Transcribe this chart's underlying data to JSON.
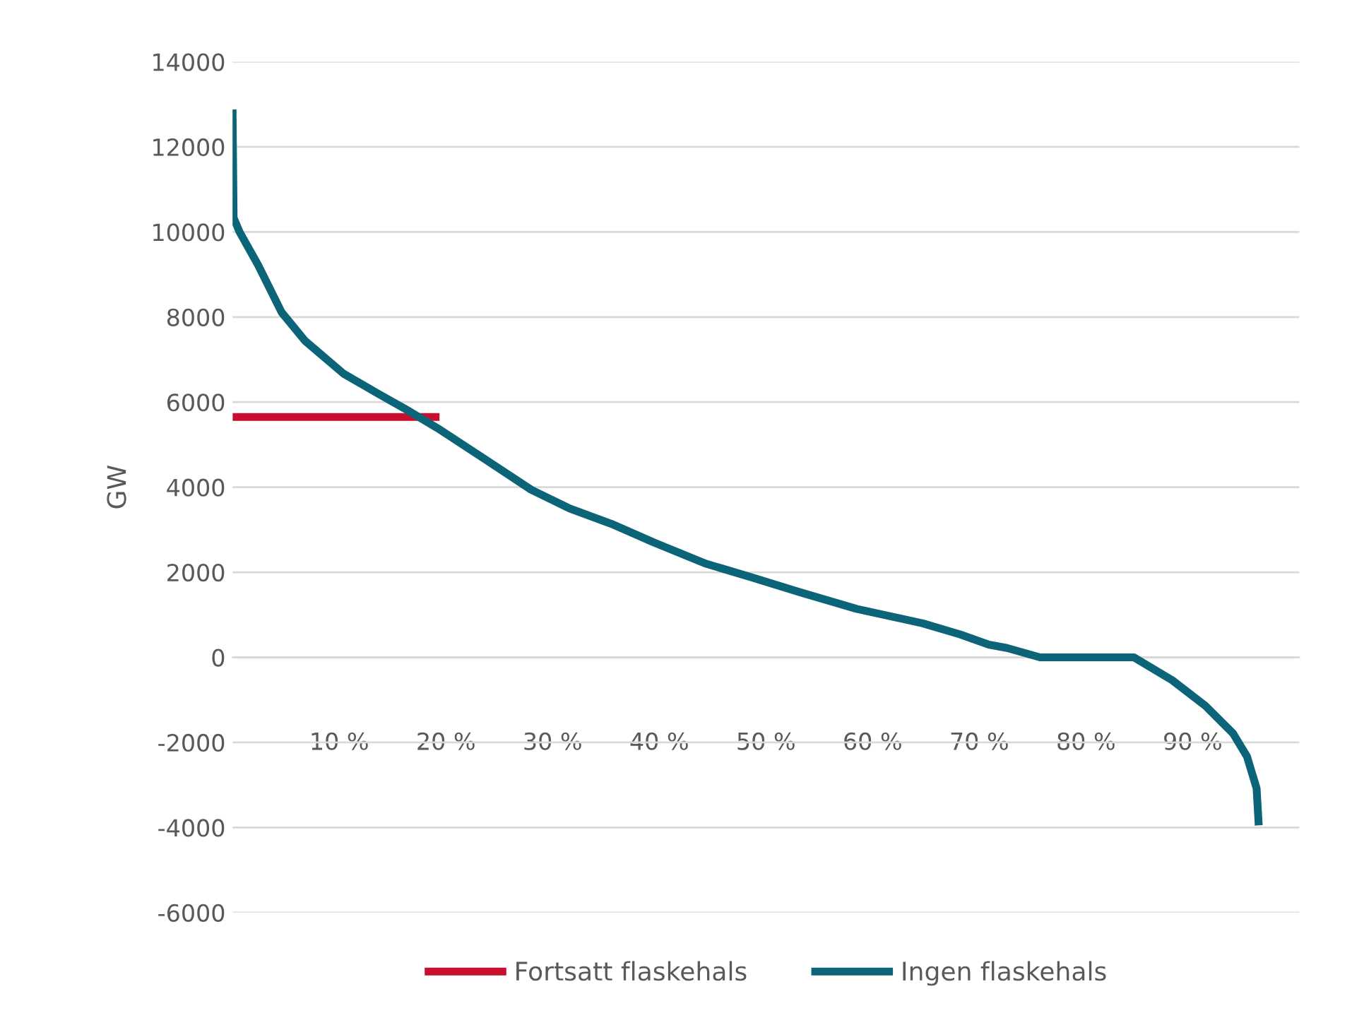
{
  "chart_data": {
    "type": "line",
    "ylabel": "GW",
    "xlim": [
      0,
      100
    ],
    "xticks": [
      {
        "value": 10,
        "label": "10 %"
      },
      {
        "value": 20,
        "label": "20 %"
      },
      {
        "value": 30,
        "label": "30 %"
      },
      {
        "value": 40,
        "label": "40 %"
      },
      {
        "value": 50,
        "label": "50 %"
      },
      {
        "value": 60,
        "label": "60 %"
      },
      {
        "value": 70,
        "label": "70 %"
      },
      {
        "value": 80,
        "label": "80 %"
      },
      {
        "value": 90,
        "label": "90 %"
      }
    ],
    "ylim": [
      -6000,
      14000
    ],
    "yticks": [
      -6000,
      -4000,
      -2000,
      0,
      2000,
      4000,
      6000,
      8000,
      10000,
      12000,
      14000
    ],
    "grid": "y",
    "legend": "bottom",
    "line_style": "solid",
    "marker": "none",
    "series": [
      {
        "name": "Fortsatt flaskehals",
        "color": "#c8102e",
        "x": [
          0,
          19.4
        ],
        "values": [
          5650,
          5650
        ]
      },
      {
        "name": "Ingen flaskehals",
        "color": "#0b6477",
        "x": [
          0,
          0.1,
          0.66,
          2.4,
          4.6,
          6.8,
          10.4,
          13.5,
          16.6,
          19.2,
          23.6,
          28.0,
          31.6,
          35.5,
          39.5,
          44.4,
          48.8,
          53.2,
          58.5,
          64.7,
          68.2,
          70.9,
          72.6,
          75.7,
          84.5,
          88.1,
          91.2,
          93.8,
          95.1,
          96.0,
          96.2
        ],
        "values": [
          12880,
          10330,
          10000,
          9220,
          8110,
          7440,
          6670,
          6220,
          5780,
          5390,
          4670,
          3940,
          3500,
          3140,
          2700,
          2200,
          1870,
          1530,
          1140,
          800,
          540,
          300,
          220,
          0,
          0,
          -540,
          -1140,
          -1790,
          -2330,
          -3080,
          -3950
        ]
      }
    ]
  }
}
